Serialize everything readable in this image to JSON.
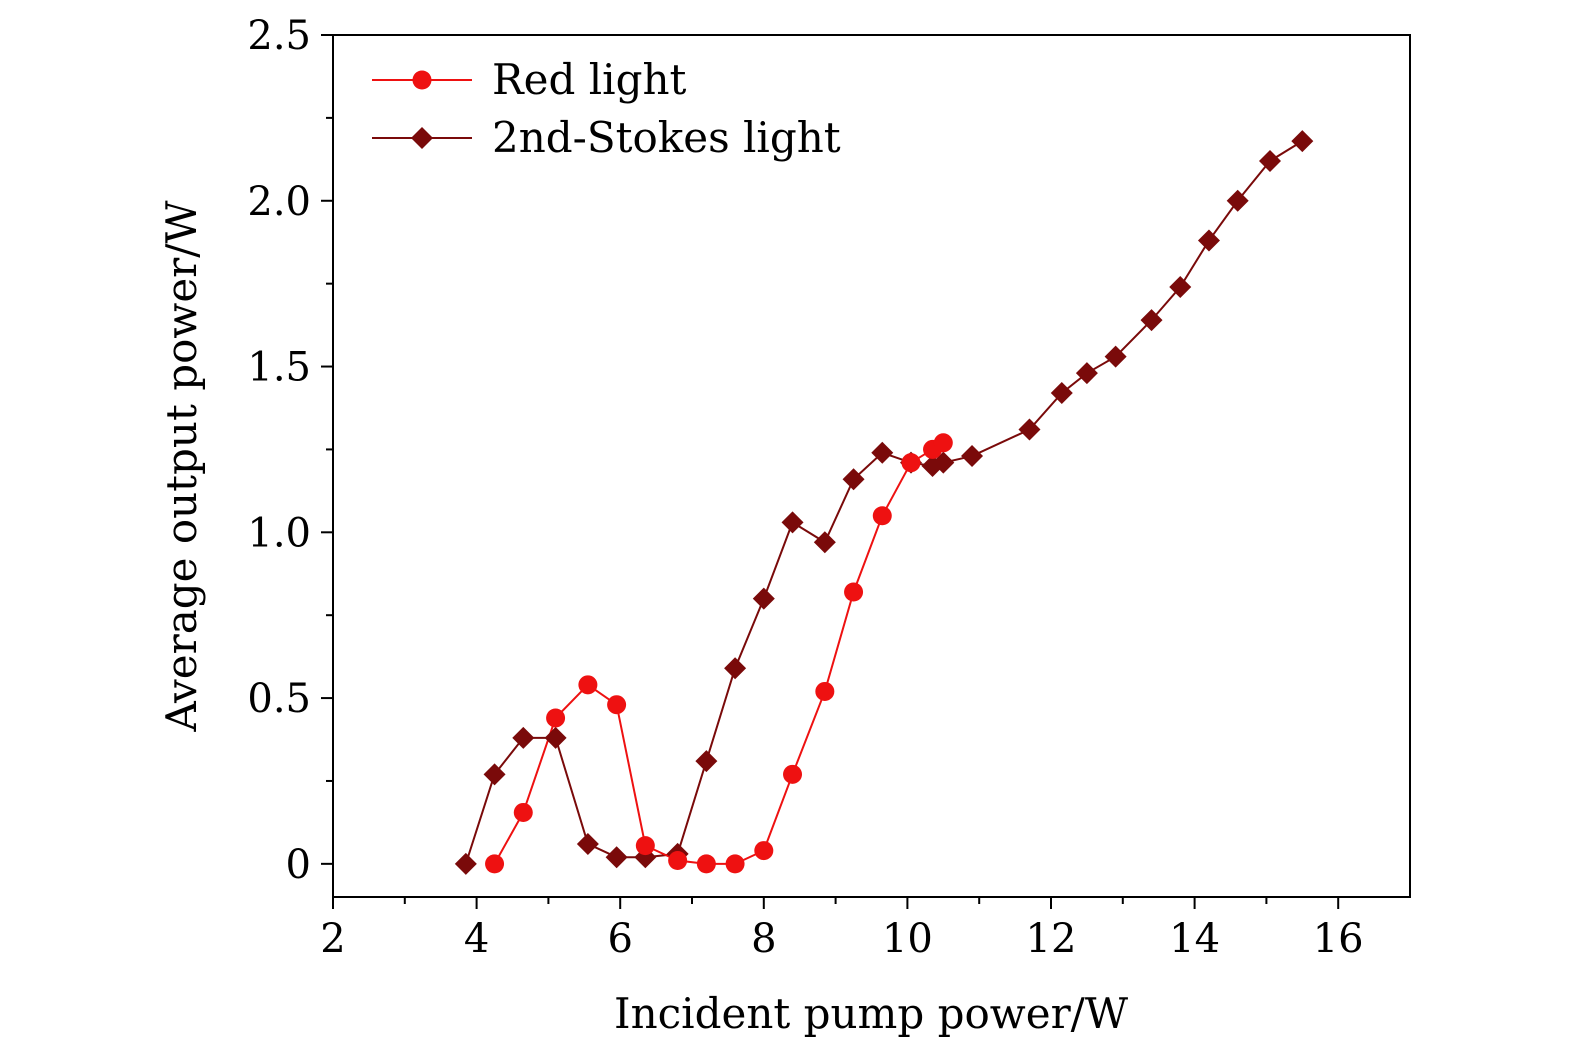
{
  "chart_data": {
    "type": "line",
    "xlabel": "Incident pump power/W",
    "ylabel": "Average output power/W",
    "xlim": [
      2,
      17
    ],
    "ylim": [
      -0.1,
      2.5
    ],
    "xticks": [
      2,
      4,
      6,
      8,
      10,
      12,
      14,
      16
    ],
    "yticks": [
      0,
      0.5,
      1.0,
      1.5,
      2.0,
      2.5
    ],
    "xtick_labels": [
      "2",
      "4",
      "6",
      "8",
      "10",
      "12",
      "14",
      "16"
    ],
    "ytick_labels": [
      "0",
      "0.5",
      "1.0",
      "1.5",
      "2.0",
      "2.5"
    ],
    "grid": false,
    "legend_position": "top-left",
    "series": [
      {
        "name": "Red light",
        "color": "#ee1111",
        "marker": "circle",
        "x": [
          4.25,
          4.65,
          5.1,
          5.55,
          5.95,
          6.35,
          6.8,
          7.2,
          7.6,
          8.0,
          8.4,
          8.85,
          9.25,
          9.65,
          10.05,
          10.35,
          10.5
        ],
        "y": [
          0.0,
          0.155,
          0.44,
          0.54,
          0.48,
          0.055,
          0.01,
          0.0,
          0.0,
          0.04,
          0.27,
          0.52,
          0.82,
          1.05,
          1.21,
          1.25,
          1.27
        ]
      },
      {
        "name": "2nd-Stokes light",
        "color": "#7a0a0a",
        "marker": "diamond",
        "x": [
          3.85,
          4.25,
          4.65,
          5.1,
          5.55,
          5.95,
          6.35,
          6.8,
          7.2,
          7.6,
          8.0,
          8.4,
          8.85,
          9.25,
          9.65,
          10.05,
          10.35,
          10.5,
          10.9,
          11.7,
          12.15,
          12.5,
          12.9,
          13.4,
          13.8,
          14.2,
          14.6,
          15.05,
          15.5
        ],
        "y": [
          0.0,
          0.27,
          0.38,
          0.38,
          0.06,
          0.02,
          0.02,
          0.03,
          0.31,
          0.59,
          0.8,
          1.03,
          0.97,
          1.16,
          1.24,
          1.21,
          1.2,
          1.21,
          1.23,
          1.31,
          1.42,
          1.48,
          1.53,
          1.64,
          1.74,
          1.88,
          2.0,
          2.12,
          2.18
        ]
      }
    ]
  }
}
